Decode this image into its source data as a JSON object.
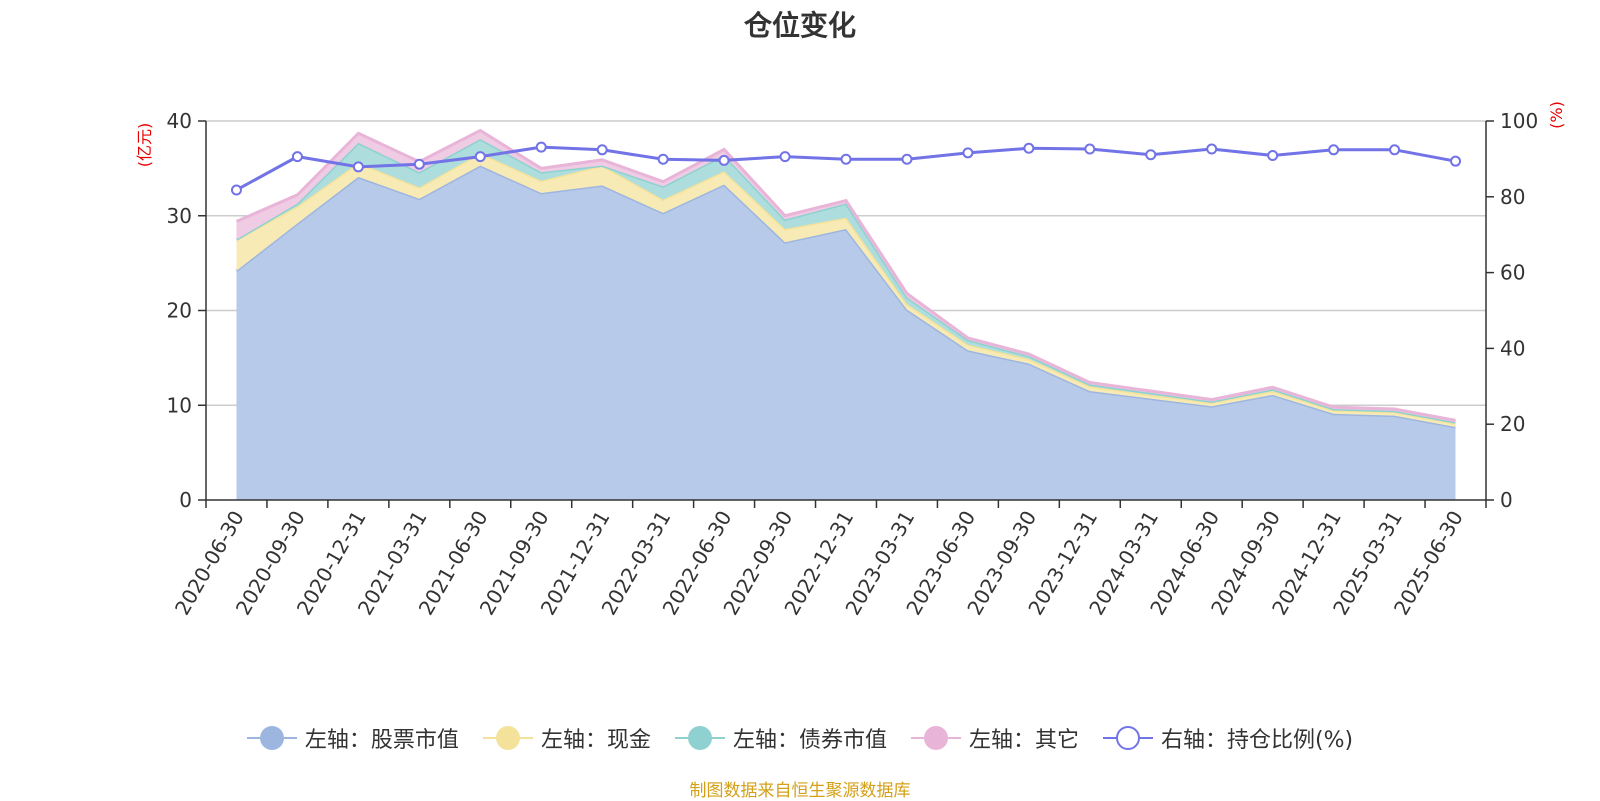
{
  "chart_data": {
    "type": "area",
    "title": "仓位变化",
    "left_unit": "(亿元)",
    "right_unit": "(%)",
    "x": [
      "2020-06-30",
      "2020-09-30",
      "2020-12-31",
      "2021-03-31",
      "2021-06-30",
      "2021-09-30",
      "2021-12-31",
      "2022-03-31",
      "2022-06-30",
      "2022-09-30",
      "2022-12-31",
      "2023-03-31",
      "2023-06-30",
      "2023-09-30",
      "2023-12-31",
      "2024-03-31",
      "2024-06-30",
      "2024-09-30",
      "2024-12-31",
      "2025-03-31",
      "2025-06-30"
    ],
    "left_ylim": [
      0,
      40
    ],
    "left_yticks": [
      "0",
      "10",
      "20",
      "30",
      "40"
    ],
    "right_ylim": [
      0,
      100
    ],
    "right_yticks": [
      "0",
      "20",
      "40",
      "60",
      "80",
      "100"
    ],
    "grid": true,
    "legend_position": "bottom",
    "series": [
      {
        "name": "左轴：股票市值",
        "axis": "left",
        "color": "#9db6e0",
        "fill": "#b7cae9",
        "values": [
          24.2,
          29.2,
          34.1,
          31.8,
          35.3,
          32.4,
          33.2,
          30.3,
          33.3,
          27.2,
          28.6,
          20.1,
          15.8,
          14.4,
          11.5,
          10.7,
          9.9,
          11.1,
          9.1,
          8.9,
          7.7
        ]
      },
      {
        "name": "左轴：现金",
        "axis": "left",
        "color": "#f5e29a",
        "fill": "#f8eab5",
        "values": [
          3.3,
          1.8,
          1.5,
          1.2,
          1.3,
          1.3,
          2.1,
          1.4,
          1.4,
          1.4,
          1.2,
          0.6,
          0.6,
          0.5,
          0.5,
          0.4,
          0.4,
          0.4,
          0.4,
          0.4,
          0.4
        ]
      },
      {
        "name": "左轴：债券市值",
        "axis": "left",
        "color": "#8fd1d1",
        "fill": "#aedddd",
        "values": [
          0.0,
          0.3,
          2.1,
          1.6,
          1.5,
          0.9,
          0.0,
          1.4,
          1.7,
          1.0,
          1.5,
          0.7,
          0.5,
          0.3,
          0.2,
          0.2,
          0.1,
          0.2,
          0.1,
          0.1,
          0.1
        ]
      },
      {
        "name": "左轴：其它",
        "axis": "left",
        "color": "#e8b4d8",
        "fill": "#f0cce4",
        "values": [
          1.9,
          0.9,
          1.0,
          1.1,
          0.9,
          0.4,
          0.6,
          0.5,
          0.6,
          0.4,
          0.3,
          0.4,
          0.2,
          0.2,
          0.2,
          0.2,
          0.2,
          0.2,
          0.2,
          0.2,
          0.2
        ]
      },
      {
        "name": "右轴：持仓比例(%)",
        "axis": "right",
        "color": "#7173e6",
        "values": [
          81.8,
          90.6,
          87.9,
          88.6,
          90.6,
          93.1,
          92.4,
          89.9,
          89.6,
          90.6,
          89.9,
          89.9,
          91.6,
          92.8,
          92.6,
          91.1,
          92.6,
          90.9,
          92.4,
          92.4,
          89.4
        ]
      }
    ],
    "source": "制图数据来自恒生聚源数据库"
  }
}
